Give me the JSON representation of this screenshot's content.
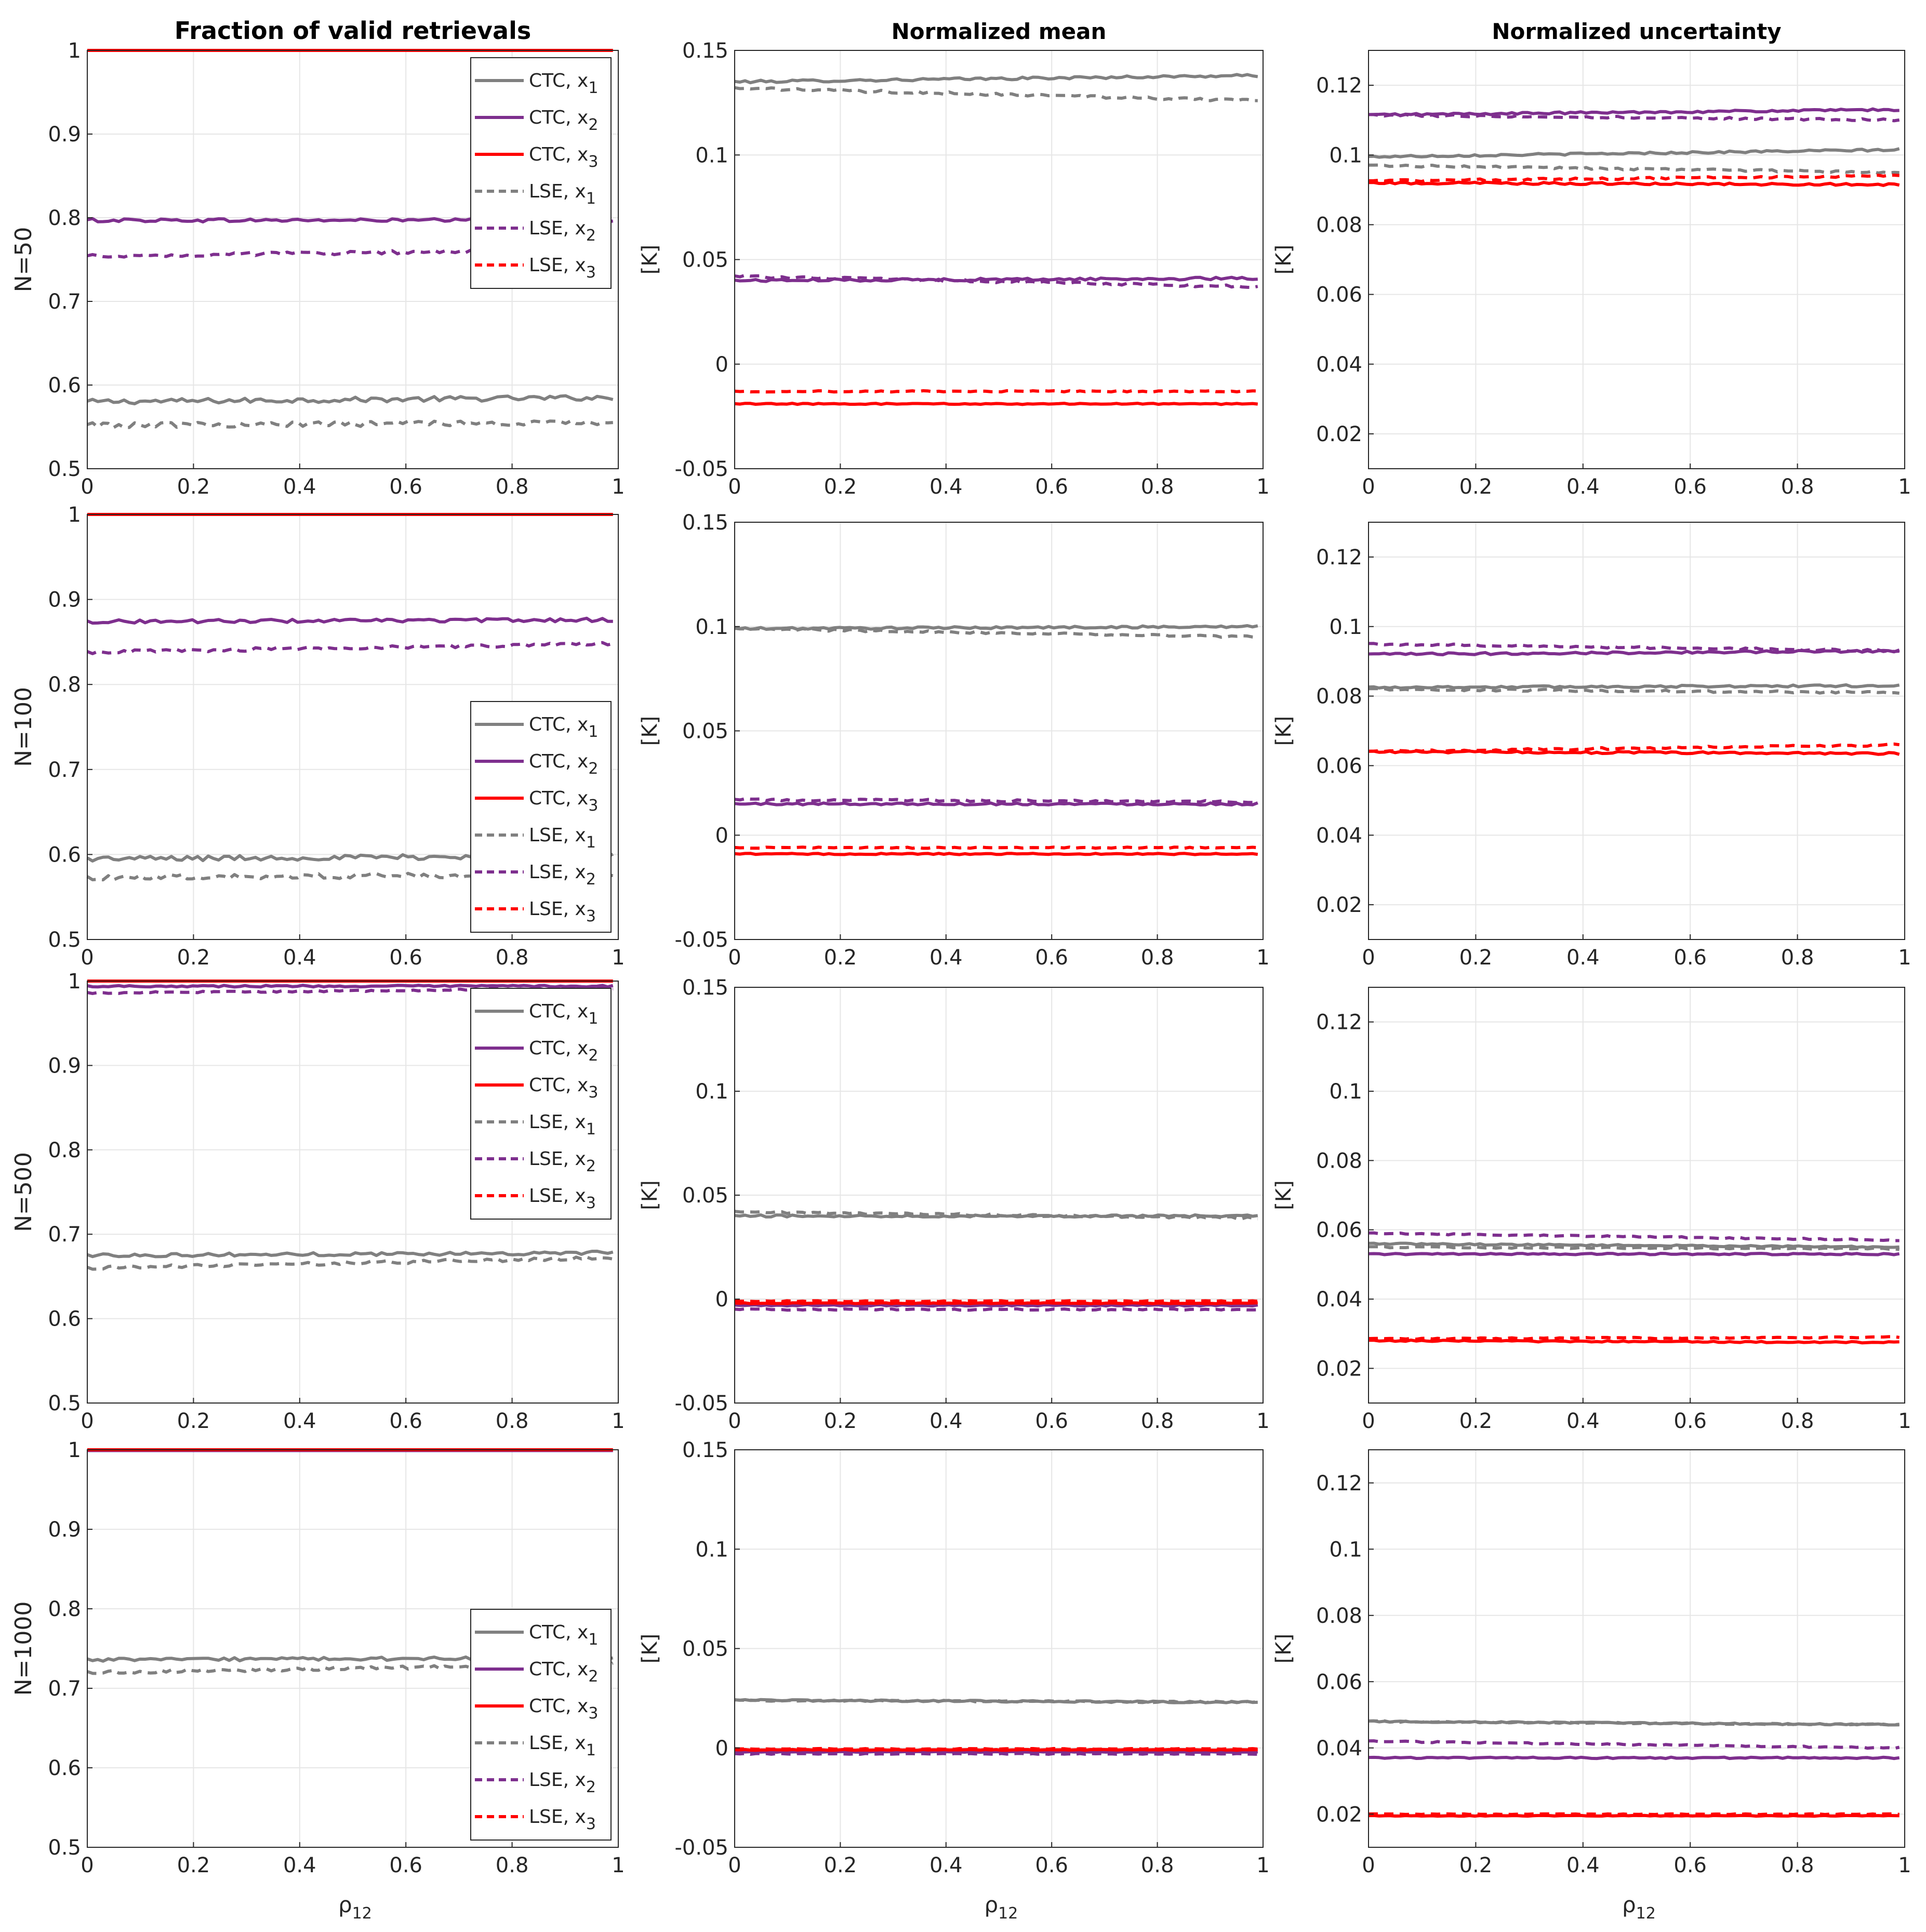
{
  "figure": {
    "column_titles": [
      "Fraction of valid retrievals",
      "Normalized mean",
      "Normalized uncertainty"
    ],
    "row_labels": [
      "N=50",
      "N=100",
      "N=500",
      "N=1000"
    ],
    "x_label_base": "ρ",
    "x_label_sub": "12",
    "unit_label": "[K]"
  },
  "colors": {
    "gray": "#808080",
    "purple": "#7E2F8E",
    "red": "#FF0000",
    "axis": "#262626",
    "grid": "#e6e6e6"
  },
  "legend": [
    {
      "base": "CTC, x",
      "sub": "1",
      "color": "gray",
      "dashed": false
    },
    {
      "base": "CTC, x",
      "sub": "2",
      "color": "purple",
      "dashed": false
    },
    {
      "base": "CTC, x",
      "sub": "3",
      "color": "red",
      "dashed": false
    },
    {
      "base": "LSE, x",
      "sub": "1",
      "color": "gray",
      "dashed": true
    },
    {
      "base": "LSE, x",
      "sub": "2",
      "color": "purple",
      "dashed": true
    },
    {
      "base": "LSE, x",
      "sub": "3",
      "color": "red",
      "dashed": true
    }
  ],
  "chart_data": [
    {
      "type": "line",
      "row": 0,
      "col": 0,
      "title": "Fraction of valid retrievals",
      "ylabel": "N=50",
      "xlabel": "",
      "xlim": [
        0,
        1
      ],
      "ylim": [
        0.5,
        1
      ],
      "legend_position": "top-right",
      "x_ticks": [
        0,
        0.2,
        0.4,
        0.6,
        0.8,
        1
      ],
      "x_tick_labels": [
        "0",
        "0.2",
        "0.4",
        "0.6",
        "0.8",
        "1"
      ],
      "y_ticks": [
        0.5,
        0.6,
        0.7,
        0.8,
        0.9,
        1
      ],
      "y_tick_labels": [
        "0.5",
        "0.6",
        "0.7",
        "0.8",
        "0.9",
        "1"
      ],
      "series": [
        {
          "name": "CTC, x1",
          "start": 0.58,
          "end": 0.585,
          "noise": 0.003
        },
        {
          "name": "CTC, x2",
          "start": 0.797,
          "end": 0.797,
          "noise": 0.002
        },
        {
          "name": "CTC, x3",
          "start": 1.0,
          "end": 1.0,
          "noise": 0
        },
        {
          "name": "LSE, x1",
          "start": 0.552,
          "end": 0.555,
          "noise": 0.003
        },
        {
          "name": "LSE, x2",
          "start": 0.754,
          "end": 0.762,
          "noise": 0.002
        },
        {
          "name": "LSE, x3",
          "start": 1.0,
          "end": 1.0,
          "noise": 0
        }
      ]
    },
    {
      "type": "line",
      "row": 0,
      "col": 1,
      "title": "Normalized mean",
      "ylabel": "[K]",
      "xlabel": "",
      "xlim": [
        0,
        1
      ],
      "ylim": [
        -0.05,
        0.15
      ],
      "x_ticks": [
        0,
        0.2,
        0.4,
        0.6,
        0.8,
        1
      ],
      "x_tick_labels": [
        "0",
        "0.2",
        "0.4",
        "0.6",
        "0.8",
        "1"
      ],
      "y_ticks": [
        -0.05,
        0,
        0.05,
        0.1,
        0.15
      ],
      "y_tick_labels": [
        "-0.05",
        "0",
        "0.05",
        "0.1",
        "0.15"
      ],
      "series": [
        {
          "name": "CTC, x1",
          "start": 0.135,
          "end": 0.138,
          "noise": 0.0006
        },
        {
          "name": "CTC, x2",
          "start": 0.04,
          "end": 0.041,
          "noise": 0.0006
        },
        {
          "name": "CTC, x3",
          "start": -0.019,
          "end": -0.019,
          "noise": 0.0003
        },
        {
          "name": "LSE, x1",
          "start": 0.132,
          "end": 0.126,
          "noise": 0.0006
        },
        {
          "name": "LSE, x2",
          "start": 0.042,
          "end": 0.037,
          "noise": 0.0006
        },
        {
          "name": "LSE, x3",
          "start": -0.013,
          "end": -0.013,
          "noise": 0.0003
        }
      ]
    },
    {
      "type": "line",
      "row": 0,
      "col": 2,
      "title": "Normalized uncertainty",
      "ylabel": "[K]",
      "xlabel": "",
      "xlim": [
        0,
        1
      ],
      "ylim": [
        0.01,
        0.13
      ],
      "x_ticks": [
        0,
        0.2,
        0.4,
        0.6,
        0.8,
        1
      ],
      "x_tick_labels": [
        "0",
        "0.2",
        "0.4",
        "0.6",
        "0.8",
        "1"
      ],
      "y_ticks": [
        0.02,
        0.04,
        0.06,
        0.08,
        0.1,
        0.12
      ],
      "y_tick_labels": [
        "0.02",
        "0.04",
        "0.06",
        "0.08",
        "0.1",
        "0.12"
      ],
      "series": [
        {
          "name": "CTC, x1",
          "start": 0.0995,
          "end": 0.1015,
          "noise": 0.0003
        },
        {
          "name": "CTC, x2",
          "start": 0.1115,
          "end": 0.113,
          "noise": 0.0003
        },
        {
          "name": "CTC, x3",
          "start": 0.092,
          "end": 0.0915,
          "noise": 0.0003
        },
        {
          "name": "LSE, x1",
          "start": 0.097,
          "end": 0.095,
          "noise": 0.0003
        },
        {
          "name": "LSE, x2",
          "start": 0.1115,
          "end": 0.11,
          "noise": 0.0003
        },
        {
          "name": "LSE, x3",
          "start": 0.0925,
          "end": 0.094,
          "noise": 0.0003
        }
      ]
    },
    {
      "type": "line",
      "row": 1,
      "col": 0,
      "title": "",
      "ylabel": "N=100",
      "xlabel": "",
      "xlim": [
        0,
        1
      ],
      "ylim": [
        0.5,
        1
      ],
      "legend_position": "bottom-right",
      "x_ticks": [
        0,
        0.2,
        0.4,
        0.6,
        0.8,
        1
      ],
      "x_tick_labels": [
        "0",
        "0.2",
        "0.4",
        "0.6",
        "0.8",
        "1"
      ],
      "y_ticks": [
        0.5,
        0.6,
        0.7,
        0.8,
        0.9,
        1
      ],
      "y_tick_labels": [
        "0.5",
        "0.6",
        "0.7",
        "0.8",
        "0.9",
        "1"
      ],
      "series": [
        {
          "name": "CTC, x1",
          "start": 0.595,
          "end": 0.598,
          "noise": 0.003
        },
        {
          "name": "CTC, x2",
          "start": 0.874,
          "end": 0.876,
          "noise": 0.002
        },
        {
          "name": "CTC, x3",
          "start": 1.0,
          "end": 1.0,
          "noise": 0
        },
        {
          "name": "LSE, x1",
          "start": 0.573,
          "end": 0.576,
          "noise": 0.003
        },
        {
          "name": "LSE, x2",
          "start": 0.838,
          "end": 0.848,
          "noise": 0.002
        },
        {
          "name": "LSE, x3",
          "start": 1.0,
          "end": 1.0,
          "noise": 0
        }
      ]
    },
    {
      "type": "line",
      "row": 1,
      "col": 1,
      "title": "",
      "ylabel": "[K]",
      "xlabel": "",
      "xlim": [
        0,
        1
      ],
      "ylim": [
        -0.05,
        0.15
      ],
      "x_ticks": [
        0,
        0.2,
        0.4,
        0.6,
        0.8,
        1
      ],
      "x_tick_labels": [
        "0",
        "0.2",
        "0.4",
        "0.6",
        "0.8",
        "1"
      ],
      "y_ticks": [
        -0.05,
        0,
        0.05,
        0.1,
        0.15
      ],
      "y_tick_labels": [
        "-0.05",
        "0",
        "0.05",
        "0.1",
        "0.15"
      ],
      "series": [
        {
          "name": "CTC, x1",
          "start": 0.099,
          "end": 0.1,
          "noise": 0.0005
        },
        {
          "name": "CTC, x2",
          "start": 0.015,
          "end": 0.015,
          "noise": 0.0005
        },
        {
          "name": "CTC, x3",
          "start": -0.009,
          "end": -0.009,
          "noise": 0.0003
        },
        {
          "name": "LSE, x1",
          "start": 0.099,
          "end": 0.095,
          "noise": 0.0005
        },
        {
          "name": "LSE, x2",
          "start": 0.017,
          "end": 0.016,
          "noise": 0.0005
        },
        {
          "name": "LSE, x3",
          "start": -0.006,
          "end": -0.006,
          "noise": 0.0003
        }
      ]
    },
    {
      "type": "line",
      "row": 1,
      "col": 2,
      "title": "",
      "ylabel": "[K]",
      "xlabel": "",
      "xlim": [
        0,
        1
      ],
      "ylim": [
        0.01,
        0.13
      ],
      "x_ticks": [
        0,
        0.2,
        0.4,
        0.6,
        0.8,
        1
      ],
      "x_tick_labels": [
        "0",
        "0.2",
        "0.4",
        "0.6",
        "0.8",
        "1"
      ],
      "y_ticks": [
        0.02,
        0.04,
        0.06,
        0.08,
        0.1,
        0.12
      ],
      "y_tick_labels": [
        "0.02",
        "0.04",
        "0.06",
        "0.08",
        "0.1",
        "0.12"
      ],
      "series": [
        {
          "name": "CTC, x1",
          "start": 0.0825,
          "end": 0.083,
          "noise": 0.0003
        },
        {
          "name": "CTC, x2",
          "start": 0.092,
          "end": 0.093,
          "noise": 0.0003
        },
        {
          "name": "CTC, x3",
          "start": 0.064,
          "end": 0.0635,
          "noise": 0.0003
        },
        {
          "name": "LSE, x1",
          "start": 0.082,
          "end": 0.081,
          "noise": 0.0003
        },
        {
          "name": "LSE, x2",
          "start": 0.095,
          "end": 0.093,
          "noise": 0.0003
        },
        {
          "name": "LSE, x3",
          "start": 0.064,
          "end": 0.066,
          "noise": 0.0003
        }
      ]
    },
    {
      "type": "line",
      "row": 2,
      "col": 0,
      "title": "",
      "ylabel": "N=500",
      "xlabel": "",
      "xlim": [
        0,
        1
      ],
      "ylim": [
        0.5,
        1
      ],
      "legend_position": "top-right",
      "x_ticks": [
        0,
        0.2,
        0.4,
        0.6,
        0.8,
        1
      ],
      "x_tick_labels": [
        "0",
        "0.2",
        "0.4",
        "0.6",
        "0.8",
        "1"
      ],
      "y_ticks": [
        0.5,
        0.6,
        0.7,
        0.8,
        0.9,
        1
      ],
      "y_tick_labels": [
        "0.5",
        "0.6",
        "0.7",
        "0.8",
        "0.9",
        "1"
      ],
      "series": [
        {
          "name": "CTC, x1",
          "start": 0.675,
          "end": 0.678,
          "noise": 0.002
        },
        {
          "name": "CTC, x2",
          "start": 0.994,
          "end": 0.994,
          "noise": 0.001
        },
        {
          "name": "CTC, x3",
          "start": 1.0,
          "end": 1.0,
          "noise": 0
        },
        {
          "name": "LSE, x1",
          "start": 0.66,
          "end": 0.672,
          "noise": 0.002
        },
        {
          "name": "LSE, x2",
          "start": 0.986,
          "end": 0.991,
          "noise": 0.001
        },
        {
          "name": "LSE, x3",
          "start": 1.0,
          "end": 1.0,
          "noise": 0
        }
      ]
    },
    {
      "type": "line",
      "row": 2,
      "col": 1,
      "title": "",
      "ylabel": "[K]",
      "xlabel": "",
      "xlim": [
        0,
        1
      ],
      "ylim": [
        -0.05,
        0.15
      ],
      "x_ticks": [
        0,
        0.2,
        0.4,
        0.6,
        0.8,
        1
      ],
      "x_tick_labels": [
        "0",
        "0.2",
        "0.4",
        "0.6",
        "0.8",
        "1"
      ],
      "y_ticks": [
        -0.05,
        0,
        0.05,
        0.1,
        0.15
      ],
      "y_tick_labels": [
        "-0.05",
        "0",
        "0.05",
        "0.1",
        "0.15"
      ],
      "series": [
        {
          "name": "CTC, x1",
          "start": 0.04,
          "end": 0.04,
          "noise": 0.0005
        },
        {
          "name": "CTC, x2",
          "start": -0.003,
          "end": -0.003,
          "noise": 0.0003
        },
        {
          "name": "CTC, x3",
          "start": -0.002,
          "end": -0.002,
          "noise": 0.0002
        },
        {
          "name": "LSE, x1",
          "start": 0.042,
          "end": 0.039,
          "noise": 0.0005
        },
        {
          "name": "LSE, x2",
          "start": -0.005,
          "end": -0.005,
          "noise": 0.0003
        },
        {
          "name": "LSE, x3",
          "start": -0.001,
          "end": -0.001,
          "noise": 0.0002
        }
      ]
    },
    {
      "type": "line",
      "row": 2,
      "col": 2,
      "title": "",
      "ylabel": "[K]",
      "xlabel": "",
      "xlim": [
        0,
        1
      ],
      "ylim": [
        0.01,
        0.13
      ],
      "x_ticks": [
        0,
        0.2,
        0.4,
        0.6,
        0.8,
        1
      ],
      "x_tick_labels": [
        "0",
        "0.2",
        "0.4",
        "0.6",
        "0.8",
        "1"
      ],
      "y_ticks": [
        0.02,
        0.04,
        0.06,
        0.08,
        0.1,
        0.12
      ],
      "y_tick_labels": [
        "0.02",
        "0.04",
        "0.06",
        "0.08",
        "0.1",
        "0.12"
      ],
      "series": [
        {
          "name": "CTC, x1",
          "start": 0.056,
          "end": 0.055,
          "noise": 0.0002
        },
        {
          "name": "CTC, x2",
          "start": 0.053,
          "end": 0.053,
          "noise": 0.0002
        },
        {
          "name": "CTC, x3",
          "start": 0.028,
          "end": 0.0275,
          "noise": 0.0002
        },
        {
          "name": "LSE, x1",
          "start": 0.055,
          "end": 0.0545,
          "noise": 0.0002
        },
        {
          "name": "LSE, x2",
          "start": 0.059,
          "end": 0.057,
          "noise": 0.0002
        },
        {
          "name": "LSE, x3",
          "start": 0.0285,
          "end": 0.029,
          "noise": 0.0002
        }
      ]
    },
    {
      "type": "line",
      "row": 3,
      "col": 0,
      "title": "",
      "ylabel": "N=1000",
      "xlabel": "ρ12",
      "xlim": [
        0,
        1
      ],
      "ylim": [
        0.5,
        1
      ],
      "legend_position": "bottom-right",
      "x_ticks": [
        0,
        0.2,
        0.4,
        0.6,
        0.8,
        1
      ],
      "x_tick_labels": [
        "0",
        "0.2",
        "0.4",
        "0.6",
        "0.8",
        "1"
      ],
      "y_ticks": [
        0.5,
        0.6,
        0.7,
        0.8,
        0.9,
        1
      ],
      "y_tick_labels": [
        "0.5",
        "0.6",
        "0.7",
        "0.8",
        "0.9",
        "1"
      ],
      "series": [
        {
          "name": "CTC, x1",
          "start": 0.736,
          "end": 0.738,
          "noise": 0.002
        },
        {
          "name": "CTC, x2",
          "start": 0.999,
          "end": 0.999,
          "noise": 0
        },
        {
          "name": "CTC, x3",
          "start": 1.0,
          "end": 1.0,
          "noise": 0
        },
        {
          "name": "LSE, x1",
          "start": 0.72,
          "end": 0.73,
          "noise": 0.002
        },
        {
          "name": "LSE, x2",
          "start": 0.999,
          "end": 0.999,
          "noise": 0
        },
        {
          "name": "LSE, x3",
          "start": 1.0,
          "end": 1.0,
          "noise": 0
        }
      ]
    },
    {
      "type": "line",
      "row": 3,
      "col": 1,
      "title": "",
      "ylabel": "[K]",
      "xlabel": "ρ12",
      "xlim": [
        0,
        1
      ],
      "ylim": [
        -0.05,
        0.15
      ],
      "x_ticks": [
        0,
        0.2,
        0.4,
        0.6,
        0.8,
        1
      ],
      "x_tick_labels": [
        "0",
        "0.2",
        "0.4",
        "0.6",
        "0.8",
        "1"
      ],
      "y_ticks": [
        -0.05,
        0,
        0.05,
        0.1,
        0.15
      ],
      "y_tick_labels": [
        "-0.05",
        "0",
        "0.05",
        "0.1",
        "0.15"
      ],
      "series": [
        {
          "name": "CTC, x1",
          "start": 0.024,
          "end": 0.023,
          "noise": 0.0004
        },
        {
          "name": "CTC, x2",
          "start": -0.002,
          "end": -0.002,
          "noise": 0.0002
        },
        {
          "name": "CTC, x3",
          "start": -0.001,
          "end": -0.001,
          "noise": 0.0002
        },
        {
          "name": "LSE, x1",
          "start": 0.024,
          "end": 0.023,
          "noise": 0.0004
        },
        {
          "name": "LSE, x2",
          "start": -0.003,
          "end": -0.003,
          "noise": 0.0002
        },
        {
          "name": "LSE, x3",
          "start": -0.0005,
          "end": -0.0005,
          "noise": 0.0002
        }
      ]
    },
    {
      "type": "line",
      "row": 3,
      "col": 2,
      "title": "",
      "ylabel": "[K]",
      "xlabel": "ρ12",
      "xlim": [
        0,
        1
      ],
      "ylim": [
        0.01,
        0.13
      ],
      "x_ticks": [
        0,
        0.2,
        0.4,
        0.6,
        0.8,
        1
      ],
      "x_tick_labels": [
        "0",
        "0.2",
        "0.4",
        "0.6",
        "0.8",
        "1"
      ],
      "y_ticks": [
        0.02,
        0.04,
        0.06,
        0.08,
        0.1,
        0.12
      ],
      "y_tick_labels": [
        "0.02",
        "0.04",
        "0.06",
        "0.08",
        "0.1",
        "0.12"
      ],
      "series": [
        {
          "name": "CTC, x1",
          "start": 0.048,
          "end": 0.047,
          "noise": 0.0002
        },
        {
          "name": "CTC, x2",
          "start": 0.037,
          "end": 0.037,
          "noise": 0.0002
        },
        {
          "name": "CTC, x3",
          "start": 0.0195,
          "end": 0.0195,
          "noise": 0.0001
        },
        {
          "name": "LSE, x1",
          "start": 0.048,
          "end": 0.047,
          "noise": 0.0002
        },
        {
          "name": "LSE, x2",
          "start": 0.042,
          "end": 0.04,
          "noise": 0.0002
        },
        {
          "name": "LSE, x3",
          "start": 0.02,
          "end": 0.02,
          "noise": 0.0001
        }
      ]
    }
  ]
}
